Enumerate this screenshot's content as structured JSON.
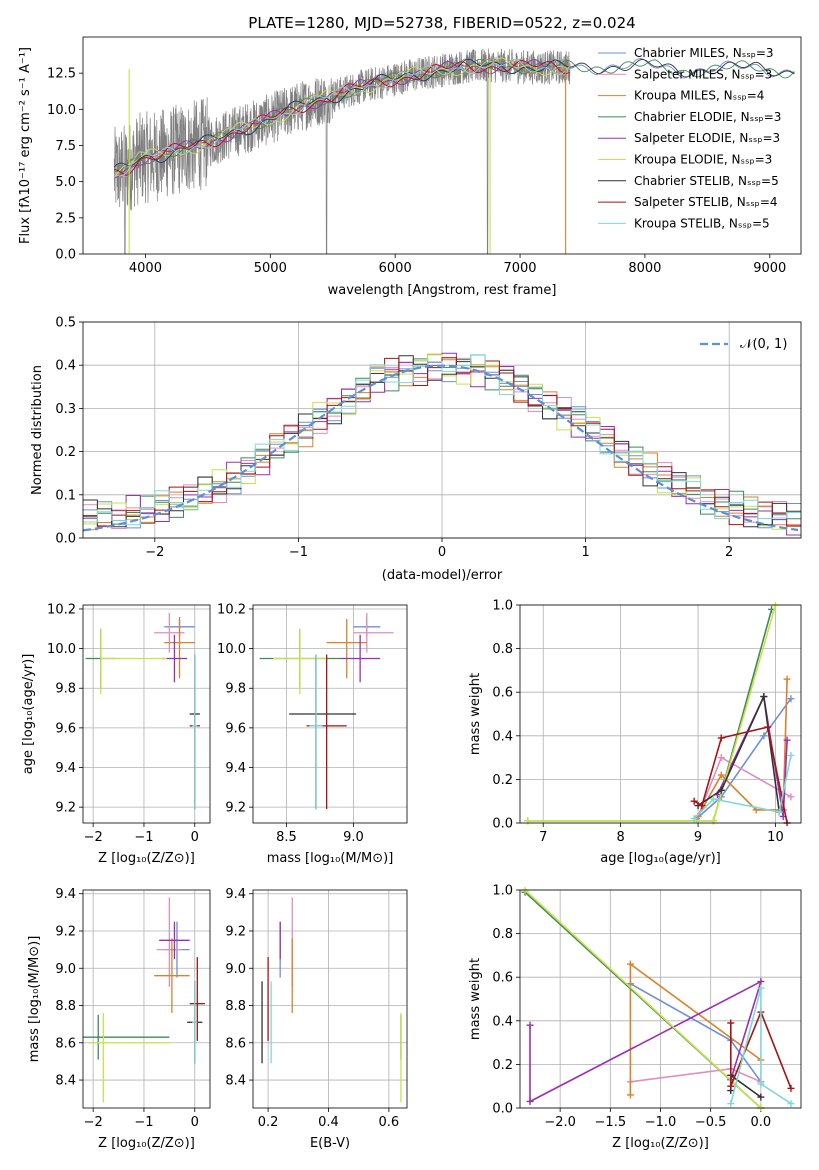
{
  "colors": {
    "chabrier_miles": "#6f8fd8",
    "salpeter_miles": "#e38cbf",
    "kroupa_miles": "#d9822b",
    "chabrier_elodie": "#3f8a5a",
    "salpeter_elodie": "#9b2fb3",
    "kroupa_elodie": "#c8e24a",
    "chabrier_stelib": "#333333",
    "salpeter_stelib": "#a31515",
    "kroupa_stelib": "#7fd8d8",
    "data_gray": "#808080",
    "normal_dash": "#5b8fd8",
    "grid": "#b0b0b0"
  },
  "chart_data": [
    {
      "id": "spectrum",
      "type": "line",
      "title": "PLATE=1280, MJD=52738, FIBERID=0522, z=0.024",
      "xlabel": "wavelength [Angstrom, rest frame]",
      "ylabel": "Flux [fλ10⁻¹⁷ erg cm⁻² s⁻¹ A⁻¹]",
      "xlim": [
        3500,
        9250
      ],
      "ylim": [
        0,
        15
      ],
      "xticks": [
        4000,
        5000,
        6000,
        7000,
        8000,
        9000
      ],
      "yticks": [
        0.0,
        2.5,
        5.0,
        7.5,
        10.0,
        12.5
      ],
      "legend": [
        "Chabrier MILES, Nₛₛₚ=3",
        "Salpeter MILES, Nₛₛₚ=3",
        "Kroupa MILES, Nₛₛₚ=4",
        "Chabrier ELODIE, Nₛₛₚ=3",
        "Salpeter ELODIE, Nₛₛₚ=3",
        "Kroupa ELODIE, Nₛₛₚ=3",
        "Chabrier STELIB, Nₛₛₚ=5",
        "Salpeter STELIB, Nₛₛₚ=4",
        "Kroupa STELIB, Nₛₛₚ=5"
      ],
      "legend_placement": "right",
      "model_continuum": {
        "x": [
          3750,
          3850,
          3950,
          4100,
          4300,
          4500,
          4700,
          4900,
          5100,
          5300,
          5500,
          5700,
          5900,
          6100,
          6300,
          6500,
          6700,
          6900,
          7100,
          7300,
          7500,
          7700,
          7900,
          8100,
          8300,
          8500,
          8700,
          8900,
          9100
        ],
        "y": [
          5.6,
          5.9,
          6.6,
          6.8,
          7.3,
          7.7,
          8.4,
          9.0,
          9.7,
          10.4,
          10.9,
          11.5,
          11.9,
          12.3,
          12.6,
          12.9,
          13.0,
          13.0,
          12.9,
          12.9,
          12.9,
          13.0,
          13.0,
          12.9,
          12.7,
          12.8,
          12.8,
          12.9,
          12.7
        ]
      },
      "data_spectrum_note_x_range": [
        3750,
        7400
      ]
    },
    {
      "id": "residuals",
      "type": "histogram",
      "xlabel": "(data-model)/error",
      "ylabel": "Normed distribution",
      "xlim": [
        -2.5,
        2.5
      ],
      "ylim": [
        0,
        0.5
      ],
      "xticks": [
        -2,
        -1,
        0,
        1,
        2
      ],
      "yticks": [
        0.0,
        0.1,
        0.2,
        0.3,
        0.4,
        0.5
      ],
      "legend": [
        "𝒩(0, 1)"
      ],
      "legend_placement": "top-right",
      "bin_edges_step": 0.1,
      "bin_start": -2.5,
      "hist_base": [
        0.05,
        0.05,
        0.05,
        0.06,
        0.06,
        0.07,
        0.08,
        0.09,
        0.11,
        0.12,
        0.14,
        0.16,
        0.18,
        0.21,
        0.23,
        0.25,
        0.28,
        0.3,
        0.32,
        0.34,
        0.37,
        0.38,
        0.39,
        0.39,
        0.4,
        0.4,
        0.39,
        0.39,
        0.38,
        0.37,
        0.35,
        0.33,
        0.31,
        0.29,
        0.27,
        0.25,
        0.23,
        0.2,
        0.18,
        0.16,
        0.14,
        0.12,
        0.11,
        0.09,
        0.08,
        0.07,
        0.06,
        0.05,
        0.05,
        0.04
      ]
    },
    {
      "id": "age_vs_Z",
      "type": "errorbar",
      "xlabel": "Z [log₁₀(Z/Z⊙)]",
      "ylabel": "age [log₁₀(age/yr)]",
      "xlim": [
        -2.2,
        0.3
      ],
      "ylim": [
        9.12,
        10.22
      ],
      "xticks": [
        -2,
        -1,
        0
      ],
      "yticks": [
        9.2,
        9.4,
        9.6,
        9.8,
        10.0,
        10.2
      ],
      "points": [
        {
          "s": "chabrier_miles",
          "x": -0.3,
          "xerr": [
            0.3,
            0.3
          ],
          "y": 10.11,
          "yerr": [
            0.05,
            0.05
          ]
        },
        {
          "s": "salpeter_miles",
          "x": -0.5,
          "xerr": [
            0.3,
            0.3
          ],
          "y": 10.08,
          "yerr": [
            0.1,
            0.1
          ]
        },
        {
          "s": "kroupa_miles",
          "x": -0.3,
          "xerr": [
            0.3,
            0.3
          ],
          "y": 10.03,
          "yerr": [
            0.18,
            0.12
          ]
        },
        {
          "s": "chabrier_elodie",
          "x": -1.85,
          "xerr": [
            0.3,
            0.3
          ],
          "y": 9.95,
          "yerr": [
            0.15,
            0.15
          ]
        },
        {
          "s": "salpeter_elodie",
          "x": -0.4,
          "xerr": [
            0.25,
            0.25
          ],
          "y": 9.95,
          "yerr": [
            0.12,
            0.12
          ]
        },
        {
          "s": "kroupa_elodie",
          "x": -1.85,
          "xerr": [
            0.0,
            1.3
          ],
          "y": 9.95,
          "yerr": [
            0.18,
            0.15
          ]
        },
        {
          "s": "chabrier_stelib",
          "x": 0.0,
          "xerr": [
            0.1,
            0.1
          ],
          "y": 9.67,
          "yerr": [
            0.48,
            0.3
          ]
        },
        {
          "s": "salpeter_stelib",
          "x": 0.0,
          "xerr": [
            0.1,
            0.1
          ],
          "y": 9.61,
          "yerr": [
            0.42,
            0.36
          ]
        },
        {
          "s": "kroupa_stelib",
          "x": 0.0,
          "xerr": [
            0.05,
            0.05
          ],
          "y": 9.61,
          "yerr": [
            0.42,
            0.36
          ]
        }
      ]
    },
    {
      "id": "age_vs_mass",
      "type": "errorbar",
      "xlabel": "mass [log₁₀(M/M⊙)]",
      "ylabel": "",
      "xlim": [
        8.25,
        9.4
      ],
      "ylim": [
        9.12,
        10.22
      ],
      "xticks": [
        8.5,
        9.0
      ],
      "yticks": [
        9.2,
        9.4,
        9.6,
        9.8,
        10.0,
        10.2
      ],
      "points": [
        {
          "s": "chabrier_miles",
          "x": 9.1,
          "xerr": [
            0.1,
            0.1
          ],
          "y": 10.11,
          "yerr": [
            0.05,
            0.05
          ]
        },
        {
          "s": "salpeter_miles",
          "x": 9.1,
          "xerr": [
            0.1,
            0.2
          ],
          "y": 10.08,
          "yerr": [
            0.1,
            0.1
          ]
        },
        {
          "s": "kroupa_miles",
          "x": 8.95,
          "xerr": [
            0.15,
            0.15
          ],
          "y": 10.03,
          "yerr": [
            0.18,
            0.12
          ]
        },
        {
          "s": "chabrier_elodie",
          "x": 8.6,
          "xerr": [
            0.3,
            0.3
          ],
          "y": 9.95,
          "yerr": [
            0.15,
            0.15
          ]
        },
        {
          "s": "salpeter_elodie",
          "x": 9.05,
          "xerr": [
            0.15,
            0.15
          ],
          "y": 9.95,
          "yerr": [
            0.12,
            0.12
          ]
        },
        {
          "s": "kroupa_elodie",
          "x": 8.6,
          "xerr": [
            0.2,
            0.2
          ],
          "y": 9.95,
          "yerr": [
            0.18,
            0.15
          ]
        },
        {
          "s": "chabrier_stelib",
          "x": 8.72,
          "xerr": [
            0.2,
            0.3
          ],
          "y": 9.67,
          "yerr": [
            0.48,
            0.3
          ]
        },
        {
          "s": "salpeter_stelib",
          "x": 8.8,
          "xerr": [
            0.15,
            0.15
          ],
          "y": 9.61,
          "yerr": [
            0.42,
            0.36
          ]
        },
        {
          "s": "kroupa_stelib",
          "x": 8.72,
          "xerr": [
            0.05,
            0.05
          ],
          "y": 9.61,
          "yerr": [
            0.42,
            0.36
          ]
        }
      ]
    },
    {
      "id": "mass_weight_vs_age",
      "type": "line",
      "xlabel": "age [log₁₀(age/yr)]",
      "ylabel": "mass weight",
      "xlim": [
        6.7,
        10.33
      ],
      "ylim": [
        0,
        1
      ],
      "xticks": [
        7,
        8,
        9,
        10
      ],
      "yticks": [
        0.0,
        0.2,
        0.4,
        0.6,
        0.8,
        1.0
      ],
      "series": [
        {
          "s": "chabrier_miles",
          "x": [
            8.98,
            9.3,
            9.85,
            10.2
          ],
          "y": [
            0.02,
            0.12,
            0.4,
            0.57
          ]
        },
        {
          "s": "salpeter_miles",
          "x": [
            9.0,
            9.3,
            10.2
          ],
          "y": [
            0.03,
            0.3,
            0.12
          ]
        },
        {
          "s": "kroupa_miles",
          "x": [
            9.0,
            9.3,
            9.75,
            10.1,
            10.15
          ],
          "y": [
            0.03,
            0.22,
            0.06,
            0.06,
            0.66
          ]
        },
        {
          "s": "chabrier_elodie",
          "x": [
            6.8,
            9.2,
            9.95
          ],
          "y": [
            0.01,
            0.01,
            0.98
          ]
        },
        {
          "s": "salpeter_elodie",
          "x": [
            9.25,
            9.85,
            10.1,
            10.15
          ],
          "y": [
            0.13,
            0.58,
            0.03,
            0.38
          ]
        },
        {
          "s": "kroupa_elodie",
          "x": [
            6.8,
            9.2,
            10.0
          ],
          "y": [
            0.01,
            0.01,
            1.0
          ]
        },
        {
          "s": "chabrier_stelib",
          "x": [
            9.0,
            9.3,
            9.85,
            10.05
          ],
          "y": [
            0.08,
            0.15,
            0.58,
            0.05
          ]
        },
        {
          "s": "salpeter_stelib",
          "x": [
            8.95,
            9.05,
            9.3,
            9.9,
            10.15
          ],
          "y": [
            0.1,
            0.08,
            0.39,
            0.44,
            0.0
          ]
        },
        {
          "s": "kroupa_stelib",
          "x": [
            8.95,
            9.2,
            10.05,
            10.2
          ],
          "y": [
            0.02,
            0.11,
            0.05,
            0.31
          ]
        }
      ]
    },
    {
      "id": "mass_vs_Z",
      "type": "errorbar",
      "xlabel": "Z [log₁₀(Z/Z⊙)]",
      "ylabel": "mass [log₁₀(M/M⊙)]",
      "xlim": [
        -2.2,
        0.3
      ],
      "ylim": [
        8.25,
        9.42
      ],
      "xticks": [
        -2,
        -1,
        0
      ],
      "yticks": [
        8.4,
        8.6,
        8.8,
        9.0,
        9.2,
        9.4
      ],
      "points": [
        {
          "s": "chabrier_miles",
          "x": -0.35,
          "xerr": [
            0.25,
            0.25
          ],
          "y": 9.1,
          "yerr": [
            0.15,
            0.15
          ]
        },
        {
          "s": "salpeter_miles",
          "x": -0.5,
          "xerr": [
            0.25,
            0.25
          ],
          "y": 9.1,
          "yerr": [
            0.2,
            0.28
          ]
        },
        {
          "s": "kroupa_miles",
          "x": -0.45,
          "xerr": [
            0.35,
            0.35
          ],
          "y": 8.96,
          "yerr": [
            0.2,
            0.2
          ]
        },
        {
          "s": "chabrier_elodie",
          "x": -1.9,
          "xerr": [
            0.3,
            1.4
          ],
          "y": 8.63,
          "yerr": [
            0.12,
            0.12
          ]
        },
        {
          "s": "salpeter_elodie",
          "x": -0.4,
          "xerr": [
            0.3,
            0.3
          ],
          "y": 9.15,
          "yerr": [
            0.1,
            0.1
          ]
        },
        {
          "s": "kroupa_elodie",
          "x": -1.8,
          "xerr": [
            0.3,
            1.3
          ],
          "y": 8.6,
          "yerr": [
            0.32,
            0.16
          ]
        },
        {
          "s": "chabrier_stelib",
          "x": 0.0,
          "xerr": [
            0.15,
            0.15
          ],
          "y": 8.71,
          "yerr": [
            0.22,
            0.22
          ]
        },
        {
          "s": "salpeter_stelib",
          "x": 0.05,
          "xerr": [
            0.15,
            0.15
          ],
          "y": 8.81,
          "yerr": [
            0.2,
            0.25
          ]
        },
        {
          "s": "kroupa_stelib",
          "x": 0.0,
          "xerr": [
            0.05,
            0.05
          ],
          "y": 8.71,
          "yerr": [
            0.22,
            0.22
          ]
        }
      ]
    },
    {
      "id": "mass_vs_ebv",
      "type": "errorbar",
      "xlabel": "E(B-V)",
      "ylabel": "",
      "xlim": [
        0.15,
        0.66
      ],
      "ylim": [
        8.25,
        9.42
      ],
      "xticks": [
        0.2,
        0.4,
        0.6
      ],
      "yticks": [
        8.4,
        8.6,
        8.8,
        9.0,
        9.2,
        9.4
      ],
      "points": [
        {
          "s": "chabrier_miles",
          "x": 0.24,
          "xerr": [
            0,
            0
          ],
          "y": 9.1,
          "yerr": [
            0.15,
            0.15
          ]
        },
        {
          "s": "salpeter_miles",
          "x": 0.28,
          "xerr": [
            0,
            0
          ],
          "y": 9.1,
          "yerr": [
            0.2,
            0.28
          ]
        },
        {
          "s": "kroupa_miles",
          "x": 0.28,
          "xerr": [
            0,
            0
          ],
          "y": 8.96,
          "yerr": [
            0.2,
            0.2
          ]
        },
        {
          "s": "chabrier_elodie",
          "x": 0.64,
          "xerr": [
            0,
            0
          ],
          "y": 8.63,
          "yerr": [
            0.12,
            0.12
          ]
        },
        {
          "s": "salpeter_elodie",
          "x": 0.24,
          "xerr": [
            0,
            0
          ],
          "y": 9.15,
          "yerr": [
            0.1,
            0.1
          ]
        },
        {
          "s": "kroupa_elodie",
          "x": 0.64,
          "xerr": [
            0,
            0
          ],
          "y": 8.6,
          "yerr": [
            0.32,
            0.16
          ]
        },
        {
          "s": "chabrier_stelib",
          "x": 0.18,
          "xerr": [
            0,
            0
          ],
          "y": 8.71,
          "yerr": [
            0.22,
            0.22
          ]
        },
        {
          "s": "salpeter_stelib",
          "x": 0.2,
          "xerr": [
            0,
            0
          ],
          "y": 8.81,
          "yerr": [
            0.2,
            0.25
          ]
        },
        {
          "s": "kroupa_stelib",
          "x": 0.21,
          "xerr": [
            0,
            0
          ],
          "y": 8.71,
          "yerr": [
            0.22,
            0.22
          ]
        }
      ]
    },
    {
      "id": "mass_weight_vs_Z",
      "type": "line",
      "xlabel": "Z [log₁₀(Z/Z⊙)]",
      "ylabel": "mass weight",
      "xlim": [
        -2.4,
        0.4
      ],
      "ylim": [
        0,
        1
      ],
      "xticks": [
        -2.0,
        -1.5,
        -1.0,
        -0.5,
        0.0
      ],
      "yticks": [
        0.0,
        0.2,
        0.4,
        0.6,
        0.8,
        1.0
      ],
      "series": [
        {
          "s": "chabrier_miles",
          "x": [
            -1.3,
            -0.3,
            0.0
          ],
          "y": [
            0.57,
            0.31,
            0.12
          ]
        },
        {
          "s": "salpeter_miles",
          "x": [
            -1.3,
            -0.3,
            0.0
          ],
          "y": [
            0.12,
            0.18,
            0.12
          ]
        },
        {
          "s": "kroupa_miles",
          "x": [
            -1.3,
            -1.3,
            0.0
          ],
          "y": [
            0.06,
            0.66,
            0.22
          ]
        },
        {
          "s": "chabrier_elodie",
          "x": [
            -2.35,
            0.0
          ],
          "y": [
            0.99,
            0.0
          ]
        },
        {
          "s": "salpeter_elodie",
          "x": [
            -2.3,
            -2.3,
            0.0,
            -0.3
          ],
          "y": [
            0.38,
            0.03,
            0.58,
            0.13
          ]
        },
        {
          "s": "kroupa_elodie",
          "x": [
            -2.35,
            0.0
          ],
          "y": [
            1.0,
            0.0
          ]
        },
        {
          "s": "chabrier_stelib",
          "x": [
            -0.3,
            -0.3,
            0.0
          ],
          "y": [
            0.08,
            0.15,
            0.05
          ]
        },
        {
          "s": "salpeter_stelib",
          "x": [
            -0.3,
            -0.3,
            0.0,
            0.3
          ],
          "y": [
            0.39,
            0.1,
            0.44,
            0.09
          ]
        },
        {
          "s": "kroupa_stelib",
          "x": [
            -0.3,
            0.0,
            0.0,
            0.3
          ],
          "y": [
            0.02,
            0.55,
            0.11,
            0.02
          ]
        }
      ]
    }
  ]
}
